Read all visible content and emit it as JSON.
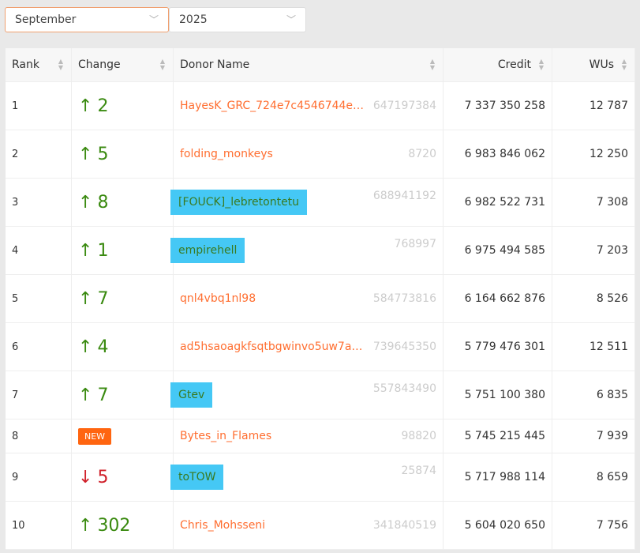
{
  "filters": {
    "month": "September",
    "year": "2025"
  },
  "columns": [
    "Rank",
    "Change",
    "Donor Name",
    "Credit",
    "WUs"
  ],
  "colors": {
    "up": "#3a8a10",
    "down": "#d0202a",
    "name": "#ff6e30",
    "highlight": "#45c8f5",
    "new_badge": "#ff6510"
  },
  "rows": [
    {
      "rank": "1",
      "dir": "up",
      "change": "2",
      "name": "HayesK_GRC_724e7c4546744e3…",
      "id": "647197384",
      "credit": "7 337 350 258",
      "wus": "12 787",
      "hl": false
    },
    {
      "rank": "2",
      "dir": "up",
      "change": "5",
      "name": "folding_monkeys",
      "id": "8720",
      "credit": "6 983 846 062",
      "wus": "12 250",
      "hl": false
    },
    {
      "rank": "3",
      "dir": "up",
      "change": "8",
      "name": "[FOUCK]_lebretontetu",
      "id": "688941192",
      "credit": "6 982 522 731",
      "wus": "7 308",
      "hl": true
    },
    {
      "rank": "4",
      "dir": "up",
      "change": "1",
      "name": "empirehell",
      "id": "768997",
      "credit": "6 975 494 585",
      "wus": "7 203",
      "hl": true
    },
    {
      "rank": "5",
      "dir": "up",
      "change": "7",
      "name": "qnl4vbq1nl98",
      "id": "584773816",
      "credit": "6 164 662 876",
      "wus": "8 526",
      "hl": false
    },
    {
      "rank": "6",
      "dir": "up",
      "change": "4",
      "name": "ad5hsaoagkfsqtbgwinvo5uw7as…",
      "id": "739645350",
      "credit": "5 779 476 301",
      "wus": "12 511",
      "hl": false
    },
    {
      "rank": "7",
      "dir": "up",
      "change": "7",
      "name": "Gtev",
      "id": "557843490",
      "credit": "5 751 100 380",
      "wus": "6 835",
      "hl": true
    },
    {
      "rank": "8",
      "dir": "new",
      "change": "NEW",
      "name": "Bytes_in_Flames",
      "id": "98820",
      "credit": "5 745 215 445",
      "wus": "7 939",
      "hl": false
    },
    {
      "rank": "9",
      "dir": "down",
      "change": "5",
      "name": "toTOW",
      "id": "25874",
      "credit": "5 717 988 114",
      "wus": "8 659",
      "hl": true
    },
    {
      "rank": "10",
      "dir": "up",
      "change": "302",
      "name": "Chris_Mohsseni",
      "id": "341840519",
      "credit": "5 604 020 650",
      "wus": "7 756",
      "hl": false
    }
  ]
}
